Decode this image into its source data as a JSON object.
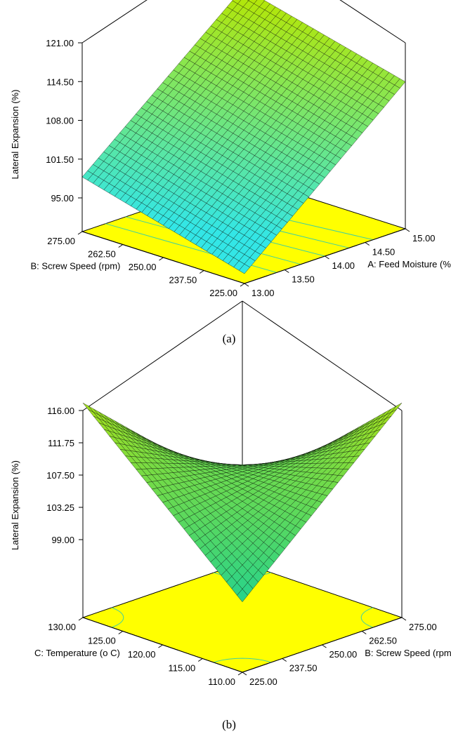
{
  "chart_data": [
    {
      "type": "surface3d",
      "caption": "(a)",
      "zlabel": "Lateral Expansion (%)",
      "xlabel": "A: Feed Moisture (%)",
      "ylabel": "B: Screw Speed (rpm)",
      "x_ticks": [
        "13.00",
        "13.50",
        "14.00",
        "14.50",
        "15.00"
      ],
      "y_ticks": [
        "225.00",
        "237.50",
        "250.00",
        "262.50",
        "275.00"
      ],
      "z_ticks": [
        "95.00",
        "101.50",
        "108.00",
        "114.50",
        "121.00"
      ],
      "xlim": [
        13,
        15
      ],
      "ylim": [
        225,
        275
      ],
      "zlim": [
        95,
        121
      ],
      "grid": 30,
      "surface_corners": {
        "x13_y225": 91.0,
        "x13_y275": 98.5,
        "x15_y225": 114.0,
        "x15_y275": 121.0
      },
      "surface_colors": {
        "low": "#33e6e6",
        "high": "#b8e600"
      },
      "floor_color": "#ffff00",
      "contour_color": "#40d0a0"
    },
    {
      "type": "surface3d",
      "caption": "(b)",
      "zlabel": "Lateral Expansion (%)",
      "xlabel": "B: Screw Speed (rpm)",
      "ylabel": "C: Temperature (o C)",
      "x_ticks": [
        "225.00",
        "237.50",
        "250.00",
        "262.50",
        "275.00"
      ],
      "y_ticks": [
        "110.00",
        "115.00",
        "120.00",
        "125.00",
        "130.00"
      ],
      "z_ticks": [
        "99.00",
        "103.25",
        "107.50",
        "111.75",
        "116.00"
      ],
      "xlim": [
        225,
        275
      ],
      "ylim": [
        110,
        130
      ],
      "zlim": [
        94.75,
        116
      ],
      "grid": 30,
      "surface_model": {
        "center": 107.5,
        "saddle_amplitude": 9.5,
        "note": "surface = center - amplitude*u*v with u,v in [-1,1]"
      },
      "surface_colors": {
        "low": "#10d0a0",
        "high": "#a0e020"
      },
      "floor_color": "#ffff00",
      "contour_color": "#40d0a0"
    }
  ]
}
